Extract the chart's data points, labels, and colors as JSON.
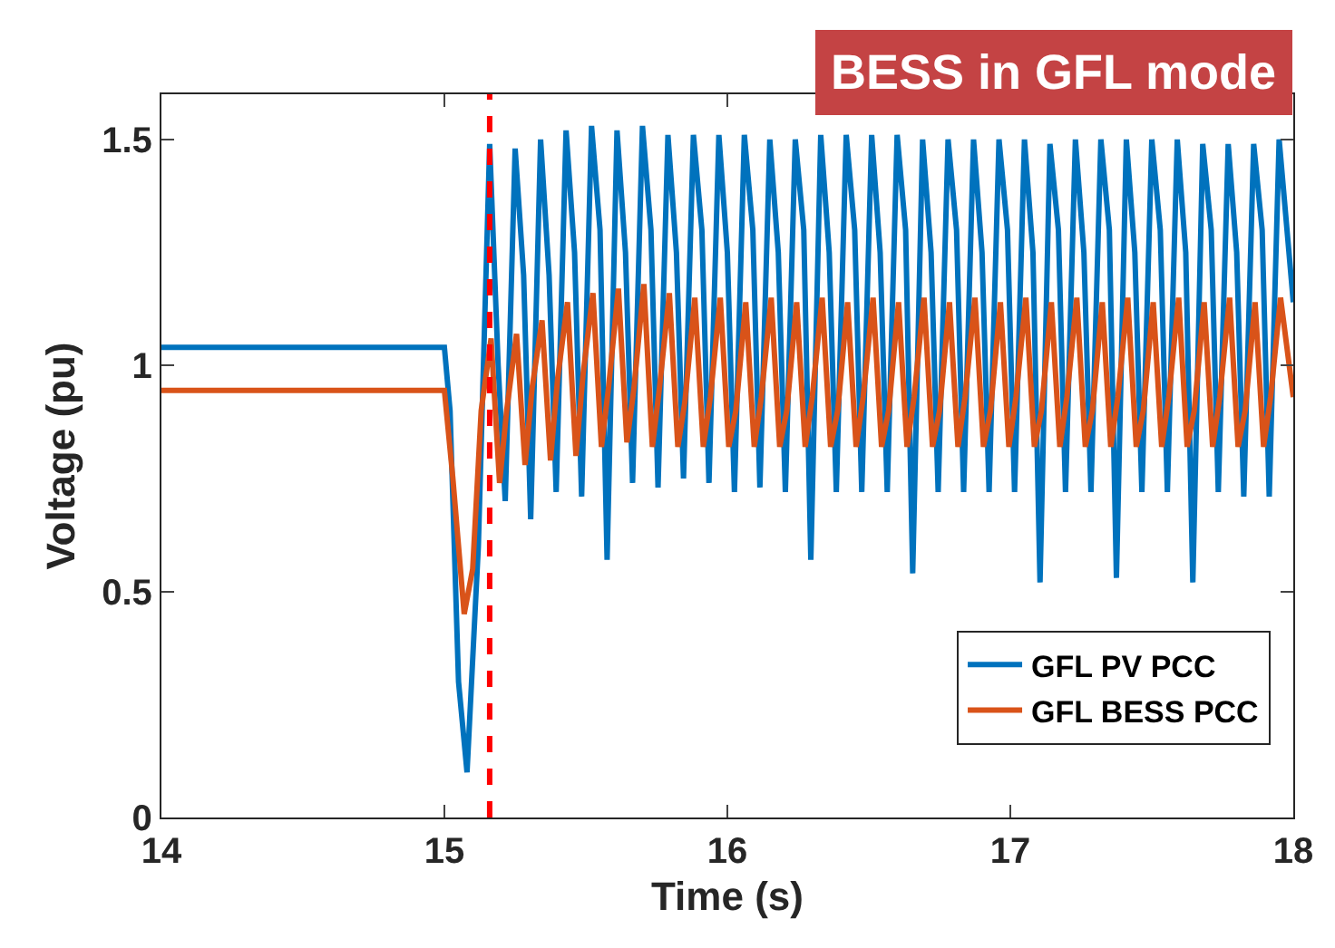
{
  "chart_data": {
    "type": "line",
    "title": "BESS in GFL mode",
    "xlabel": "Time (s)",
    "ylabel": "Voltage (pu)",
    "xlim": [
      14,
      18
    ],
    "xticks": [
      14,
      15,
      16,
      17,
      18
    ],
    "ylim": [
      0,
      1.6
    ],
    "yticks": [
      0,
      0.5,
      1,
      1.5
    ],
    "legend": "bottom right",
    "marker": "none",
    "line_style": "solid",
    "ref_lines": [
      {
        "axis": "x",
        "value": 15.16,
        "color": "#ff0000",
        "line_style": "dashed"
      }
    ],
    "series": [
      {
        "name": "GFL PV PCC",
        "color": "#0072bd",
        "x": [
          14,
          15,
          15.02,
          15.05,
          15.08,
          15.12,
          15.16,
          15.19,
          15.215,
          15.25,
          15.28,
          15.305,
          15.34,
          15.37,
          15.395,
          15.43,
          15.46,
          15.485,
          15.52,
          15.55,
          15.575,
          15.61,
          15.64,
          15.665,
          15.7,
          15.73,
          15.755,
          15.79,
          15.82,
          15.845,
          15.88,
          15.91,
          15.935,
          15.97,
          16.0,
          16.025,
          16.06,
          16.09,
          16.115,
          16.15,
          16.18,
          16.205,
          16.24,
          16.27,
          16.295,
          16.33,
          16.36,
          16.385,
          16.42,
          16.45,
          16.475,
          16.51,
          16.54,
          16.565,
          16.6,
          16.63,
          16.655,
          16.69,
          16.72,
          16.745,
          16.78,
          16.81,
          16.835,
          16.87,
          16.9,
          16.925,
          16.96,
          16.99,
          17.015,
          17.05,
          17.08,
          17.105,
          17.14,
          17.17,
          17.195,
          17.23,
          17.26,
          17.285,
          17.32,
          17.35,
          17.375,
          17.41,
          17.44,
          17.465,
          17.5,
          17.53,
          17.555,
          17.59,
          17.62,
          17.645,
          17.68,
          17.71,
          17.735,
          17.77,
          17.8,
          17.825,
          17.86,
          17.89,
          17.915,
          17.95,
          18.0
        ],
        "values": [
          1.04,
          1.04,
          0.9,
          0.3,
          0.1,
          0.6,
          1.49,
          1.0,
          0.7,
          1.48,
          1.2,
          0.66,
          1.5,
          1.2,
          0.72,
          1.52,
          1.25,
          0.71,
          1.53,
          1.3,
          0.57,
          1.52,
          1.25,
          0.74,
          1.53,
          1.3,
          0.73,
          1.51,
          1.25,
          0.75,
          1.51,
          1.3,
          0.74,
          1.51,
          1.25,
          0.72,
          1.51,
          1.3,
          0.73,
          1.5,
          1.25,
          0.72,
          1.5,
          1.3,
          0.57,
          1.51,
          1.25,
          0.72,
          1.51,
          1.3,
          0.72,
          1.51,
          1.25,
          0.72,
          1.51,
          1.3,
          0.54,
          1.5,
          1.25,
          0.72,
          1.5,
          1.3,
          0.72,
          1.5,
          1.25,
          0.72,
          1.5,
          1.3,
          0.72,
          1.5,
          1.25,
          0.52,
          1.49,
          1.3,
          0.72,
          1.5,
          1.25,
          0.72,
          1.5,
          1.3,
          0.53,
          1.5,
          1.25,
          0.72,
          1.5,
          1.3,
          0.72,
          1.5,
          1.25,
          0.52,
          1.49,
          1.3,
          0.72,
          1.49,
          1.25,
          0.71,
          1.49,
          1.3,
          0.71,
          1.5,
          1.14
        ]
      },
      {
        "name": "GFL BESS PCC",
        "color": "#d95319",
        "x": [
          14,
          15,
          15.03,
          15.07,
          15.1,
          15.13,
          15.165,
          15.195,
          15.22,
          15.255,
          15.285,
          15.31,
          15.345,
          15.375,
          15.4,
          15.435,
          15.465,
          15.49,
          15.525,
          15.555,
          15.58,
          15.615,
          15.645,
          15.67,
          15.705,
          15.735,
          15.76,
          15.795,
          15.825,
          15.85,
          15.885,
          15.915,
          15.94,
          15.975,
          16.005,
          16.03,
          16.065,
          16.095,
          16.12,
          16.155,
          16.185,
          16.21,
          16.245,
          16.275,
          16.3,
          16.335,
          16.365,
          16.39,
          16.425,
          16.455,
          16.48,
          16.515,
          16.545,
          16.57,
          16.605,
          16.635,
          16.66,
          16.695,
          16.725,
          16.75,
          16.785,
          16.815,
          16.84,
          16.875,
          16.905,
          16.93,
          16.965,
          16.995,
          17.02,
          17.055,
          17.085,
          17.11,
          17.145,
          17.175,
          17.2,
          17.235,
          17.265,
          17.29,
          17.325,
          17.355,
          17.38,
          17.415,
          17.445,
          17.47,
          17.505,
          17.535,
          17.56,
          17.595,
          17.625,
          17.65,
          17.685,
          17.715,
          17.74,
          17.775,
          17.805,
          17.83,
          17.865,
          17.895,
          17.92,
          17.955,
          18.0
        ],
        "values": [
          0.945,
          0.945,
          0.75,
          0.45,
          0.55,
          0.9,
          1.06,
          0.74,
          0.9,
          1.07,
          0.78,
          0.95,
          1.1,
          0.79,
          0.97,
          1.14,
          0.8,
          0.98,
          1.16,
          0.82,
          0.95,
          1.17,
          0.83,
          0.95,
          1.18,
          0.82,
          0.95,
          1.16,
          0.82,
          0.92,
          1.15,
          0.82,
          0.93,
          1.15,
          0.82,
          0.9,
          1.14,
          0.82,
          0.93,
          1.15,
          0.82,
          0.9,
          1.14,
          0.82,
          0.93,
          1.15,
          0.82,
          0.9,
          1.14,
          0.82,
          0.93,
          1.15,
          0.82,
          0.9,
          1.14,
          0.82,
          0.93,
          1.15,
          0.82,
          0.9,
          1.14,
          0.82,
          0.93,
          1.15,
          0.82,
          0.9,
          1.14,
          0.82,
          0.93,
          1.15,
          0.82,
          0.9,
          1.14,
          0.82,
          0.93,
          1.15,
          0.82,
          0.9,
          1.14,
          0.82,
          0.93,
          1.15,
          0.82,
          0.9,
          1.14,
          0.82,
          0.93,
          1.15,
          0.82,
          0.9,
          1.14,
          0.82,
          0.93,
          1.15,
          0.82,
          0.9,
          1.14,
          0.82,
          0.93,
          1.15,
          0.93
        ]
      }
    ]
  }
}
